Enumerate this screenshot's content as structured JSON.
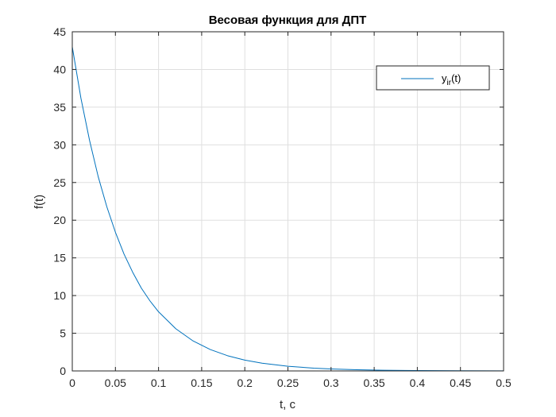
{
  "chart_data": {
    "type": "line",
    "title": "Весовая функция для ДПТ",
    "xlabel": "t, c",
    "ylabel": "f(t)",
    "xlim": [
      0,
      0.5
    ],
    "ylim": [
      0,
      45
    ],
    "xticks": [
      0,
      0.05,
      0.1,
      0.15,
      0.2,
      0.25,
      0.3,
      0.35,
      0.4,
      0.45,
      0.5
    ],
    "xtick_labels": [
      "0",
      "0.05",
      "0.1",
      "0.15",
      "0.2",
      "0.25",
      "0.3",
      "0.35",
      "0.4",
      "0.45",
      "0.5"
    ],
    "yticks": [
      0,
      5,
      10,
      15,
      20,
      25,
      30,
      35,
      40,
      45
    ],
    "ytick_labels": [
      "0",
      "5",
      "10",
      "15",
      "20",
      "25",
      "30",
      "35",
      "40",
      "45"
    ],
    "grid": true,
    "legend_position": "top-right",
    "series": [
      {
        "name": "y",
        "name_subscript": "ir",
        "name_suffix": "(t)",
        "color": "#0072BD",
        "x": [
          0,
          0.01,
          0.02,
          0.03,
          0.04,
          0.05,
          0.06,
          0.07,
          0.08,
          0.09,
          0.1,
          0.12,
          0.14,
          0.16,
          0.18,
          0.2,
          0.22,
          0.25,
          0.28,
          0.3,
          0.33,
          0.36,
          0.4,
          0.45,
          0.5
        ],
        "y": [
          43.0,
          36.2,
          30.6,
          25.8,
          21.8,
          18.4,
          15.5,
          13.1,
          11.0,
          9.3,
          7.85,
          5.6,
          3.98,
          2.84,
          2.02,
          1.44,
          1.03,
          0.62,
          0.37,
          0.26,
          0.16,
          0.09,
          0.05,
          0.02,
          0.01
        ]
      }
    ]
  }
}
